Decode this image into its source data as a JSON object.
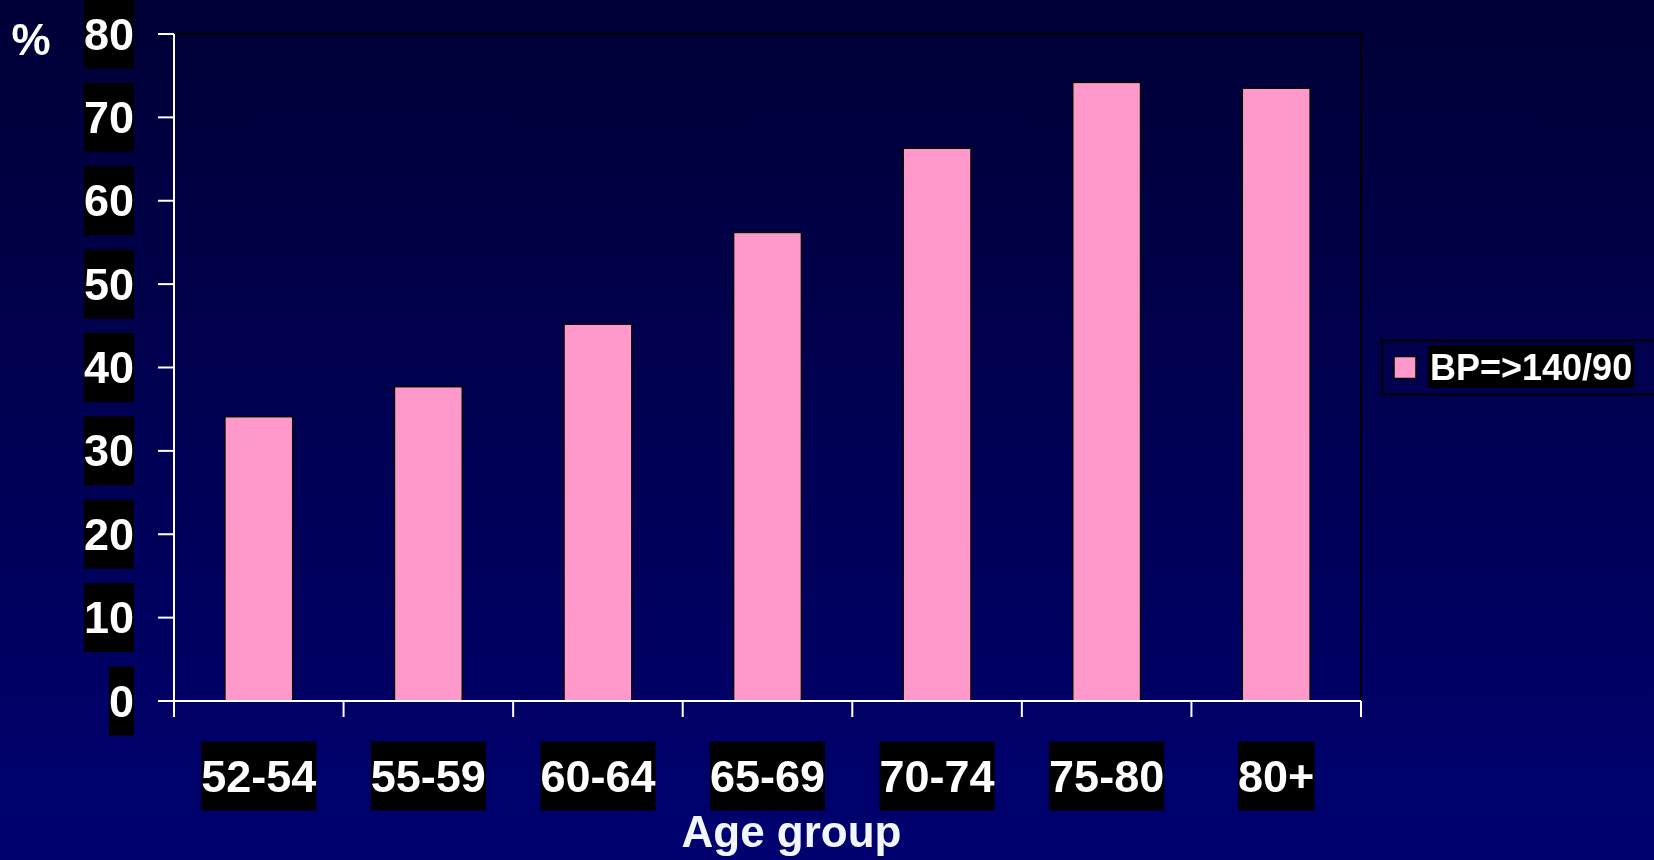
{
  "chart_data": {
    "type": "bar",
    "xlabel": "Age group",
    "ylabel": "%",
    "categories": [
      "52-54",
      "55-59",
      "60-64",
      "65-69",
      "70-74",
      "75-80",
      "80+"
    ],
    "series": [
      {
        "name": "BP=>140/90",
        "color": "#ff99cc",
        "values": [
          34.1,
          37.7,
          45.2,
          56.2,
          66.3,
          74.2,
          73.5
        ]
      }
    ],
    "ylim": [
      0,
      80
    ],
    "yticks": [
      0,
      10,
      20,
      30,
      40,
      50,
      60,
      70,
      80
    ],
    "legend": "right"
  }
}
